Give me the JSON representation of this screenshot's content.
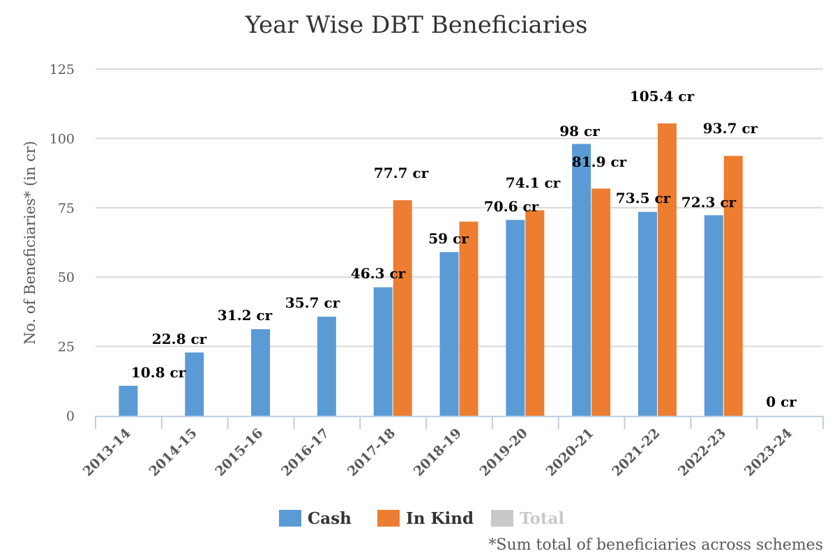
{
  "chart_data": {
    "type": "bar",
    "title": "Year Wise DBT Beneficiaries",
    "xlabel": "",
    "ylabel": "No. of Beneficiaries* (in cr)",
    "ylim": [
      0,
      125
    ],
    "yticks": [
      0,
      25,
      50,
      75,
      100,
      125
    ],
    "grid": true,
    "legend_position": "bottom",
    "categories": [
      "2013-14",
      "2014-15",
      "2015-16",
      "2016-17",
      "2017-18",
      "2018-19",
      "2019-20",
      "2020-21",
      "2021-22",
      "2022-23",
      "2023-24"
    ],
    "series": [
      {
        "name": "Cash",
        "color": "#5b9bd5",
        "values": [
          10.8,
          22.8,
          31.2,
          35.7,
          46.3,
          59,
          70.6,
          98,
          73.5,
          72.3,
          0
        ]
      },
      {
        "name": "In Kind",
        "color": "#ed7d31",
        "values": [
          0,
          0,
          0,
          0,
          77.7,
          70,
          74.1,
          81.9,
          105.4,
          93.7,
          0
        ]
      },
      {
        "name": "Total",
        "color": "#c9c9c9",
        "hidden": true,
        "values": []
      }
    ],
    "data_labels": [
      {
        "category": "2013-14",
        "text": "10.8 cr"
      },
      {
        "category": "2014-15",
        "text": "22.8 cr"
      },
      {
        "category": "2015-16",
        "text": "31.2 cr"
      },
      {
        "category": "2016-17",
        "text": "35.7 cr"
      },
      {
        "category": "2017-18",
        "text": "46.3 cr"
      },
      {
        "category": "2017-18",
        "text": "77.7 cr"
      },
      {
        "category": "2018-19",
        "text": "59 cr"
      },
      {
        "category": "2019-20",
        "text": "70.6 cr"
      },
      {
        "category": "2019-20",
        "text": "74.1 cr"
      },
      {
        "category": "2020-21",
        "text": "98 cr"
      },
      {
        "category": "2020-21",
        "text": "81.9 cr"
      },
      {
        "category": "2021-22",
        "text": "73.5 cr"
      },
      {
        "category": "2021-22",
        "text": "105.4 cr"
      },
      {
        "category": "2022-23",
        "text": "72.3 cr"
      },
      {
        "category": "2022-23",
        "text": "93.7 cr"
      },
      {
        "category": "2023-24",
        "text": "0 cr"
      }
    ],
    "footnote": "*Sum total of beneficiaries across schemes"
  }
}
